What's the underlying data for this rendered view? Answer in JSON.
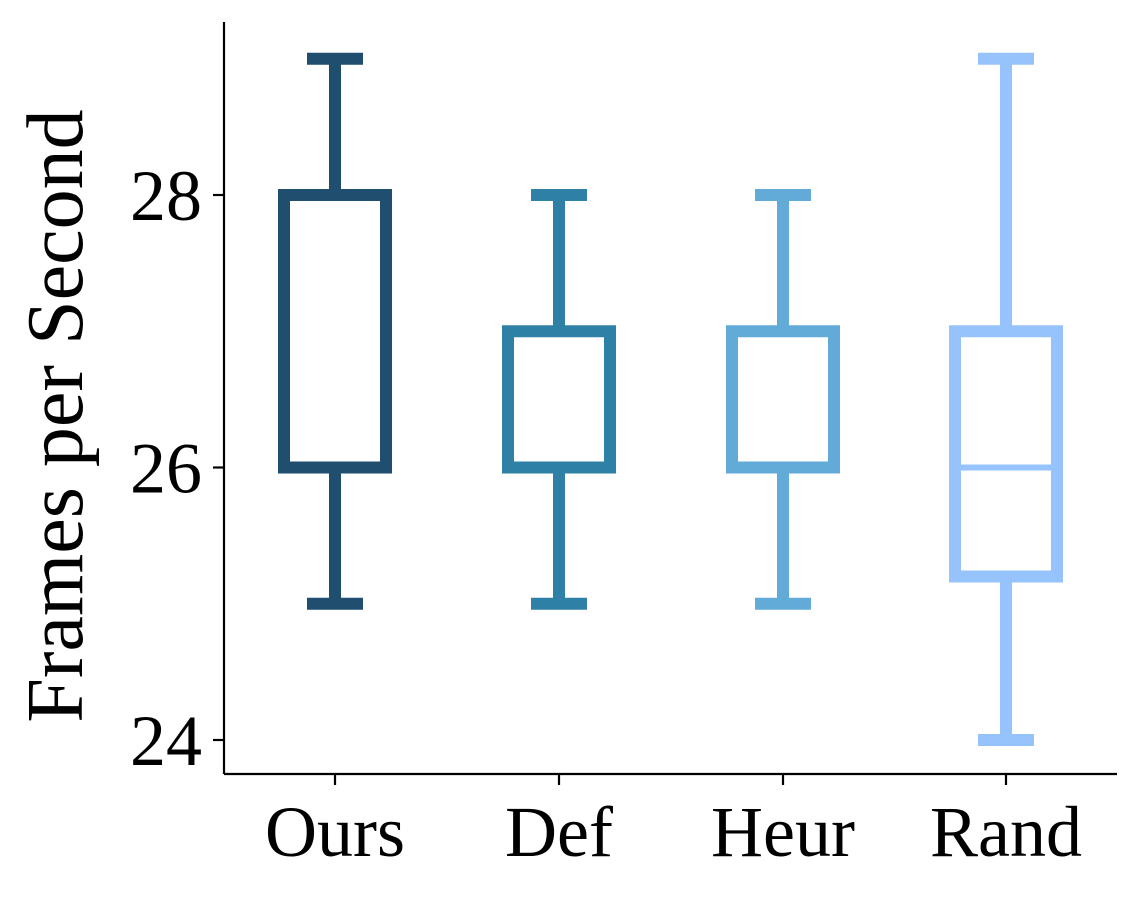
{
  "chart_data": {
    "type": "box",
    "title": "",
    "xlabel": "",
    "ylabel": "Frames per Second",
    "ylim": [
      23.75,
      29.3
    ],
    "yticks": [
      24,
      26,
      28
    ],
    "categories": [
      "Ours",
      "Def",
      "Heur",
      "Rand"
    ],
    "boxes": [
      {
        "label": "Ours",
        "whisker_low": 25,
        "q1": 26,
        "median": 28,
        "q3": 28,
        "whisker_high": 29,
        "color": "#1f4e6e"
      },
      {
        "label": "Def",
        "whisker_low": 25,
        "q1": 26,
        "median": 27,
        "q3": 27,
        "whisker_high": 28,
        "color": "#2e80a6"
      },
      {
        "label": "Heur",
        "whisker_low": 25,
        "q1": 26,
        "median": 27,
        "q3": 27,
        "whisker_high": 28,
        "color": "#62aad8"
      },
      {
        "label": "Rand",
        "whisker_low": 24,
        "q1": 25.2,
        "median": 26,
        "q3": 27,
        "whisker_high": 29,
        "color": "#96c3fb"
      }
    ],
    "grid": false,
    "legend": "none"
  }
}
